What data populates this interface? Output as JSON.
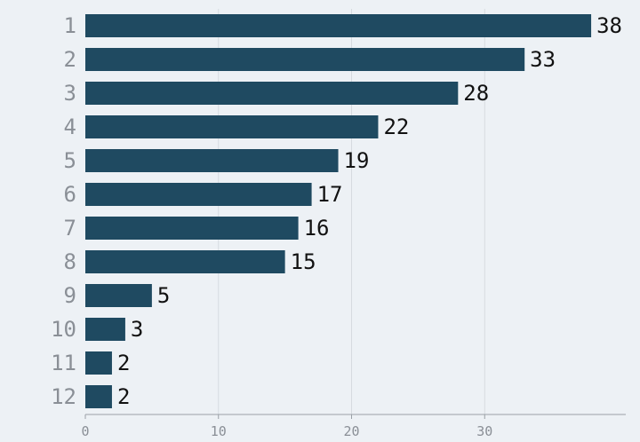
{
  "chart_data": {
    "type": "bar",
    "orientation": "horizontal",
    "categories": [
      "1",
      "2",
      "3",
      "4",
      "5",
      "6",
      "7",
      "8",
      "9",
      "10",
      "11",
      "12"
    ],
    "values": [
      38,
      33,
      28,
      22,
      19,
      17,
      16,
      15,
      5,
      3,
      2,
      2
    ],
    "xlim": [
      0,
      40.6
    ],
    "x_ticks": [
      0,
      10,
      20,
      30
    ],
    "grid": true,
    "bar_color": "#1f4a61",
    "background": "#edf1f5",
    "title": "",
    "xlabel": "",
    "ylabel": ""
  }
}
